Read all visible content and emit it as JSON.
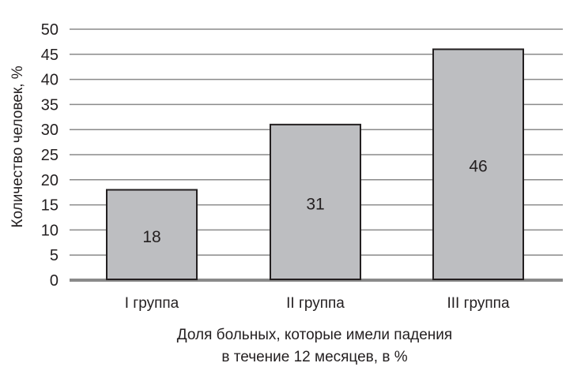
{
  "chart_data": {
    "type": "bar",
    "categories": [
      "I группа",
      "II группа",
      "III группа"
    ],
    "values": [
      18,
      31,
      46
    ],
    "data_labels": [
      "18",
      "31",
      "46"
    ],
    "title": "",
    "xlabel": [
      "Доля больных, которые имели падения",
      "в течение 12 месяцев, в %"
    ],
    "ylabel": "Количество человек, %",
    "ylim": [
      0,
      50
    ],
    "yticks": [
      0,
      5,
      10,
      15,
      20,
      25,
      30,
      35,
      40,
      45,
      50
    ],
    "grid": true,
    "colors": {
      "bar": "#bdbec1",
      "bar_border": "#231f20",
      "grid": "#8a8a8a",
      "baseline": "#8a8a8a"
    }
  }
}
